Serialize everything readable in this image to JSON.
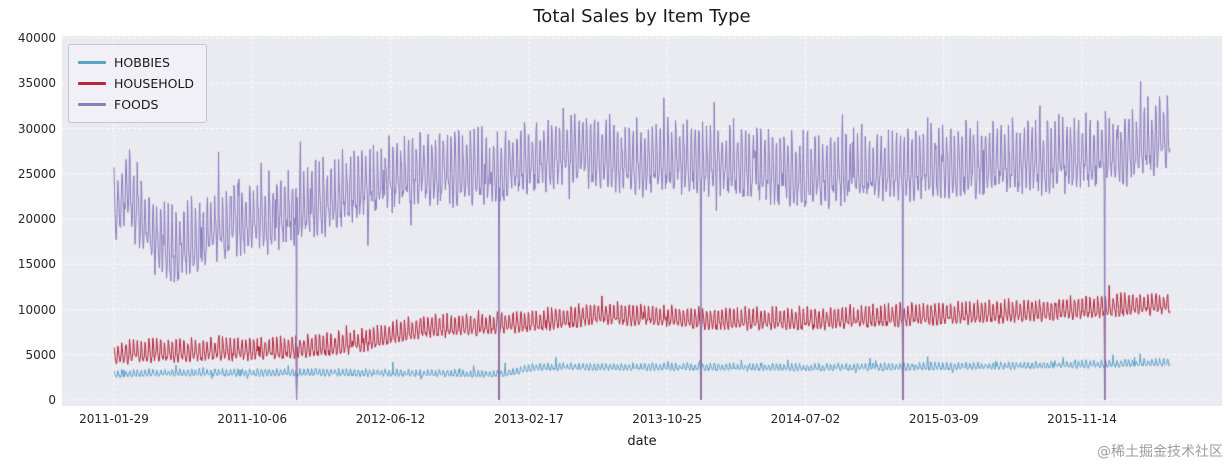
{
  "watermark": "@稀土掘金技术社区",
  "chart_data": {
    "type": "line",
    "title": "Total Sales by Item Type",
    "xlabel": "date",
    "ylabel": "",
    "x_start_date": "2011-01-29",
    "n_days": 1910,
    "ylim": [
      0,
      40000
    ],
    "y_ticks": [
      0,
      5000,
      10000,
      15000,
      20000,
      25000,
      30000,
      35000,
      40000
    ],
    "x_ticks": [
      {
        "day": 0,
        "label": "2011-01-29"
      },
      {
        "day": 250,
        "label": "2011-10-06"
      },
      {
        "day": 500,
        "label": "2012-06-12"
      },
      {
        "day": 750,
        "label": "2013-02-17"
      },
      {
        "day": 1000,
        "label": "2013-10-25"
      },
      {
        "day": 1250,
        "label": "2014-07-02"
      },
      {
        "day": 1500,
        "label": "2015-03-09"
      },
      {
        "day": 1750,
        "label": "2015-11-14"
      }
    ],
    "grid": true,
    "grid_style": "dashed-white",
    "plot_background": "#eaeaf1",
    "grid_color": "#ffffff",
    "legend_position": "upper-left",
    "zero_sales_days": [
      330,
      696,
      1061,
      1426,
      1791
    ],
    "weekly_pattern_sat_first": [
      1.0,
      0.75,
      0.0,
      -0.55,
      -0.7,
      -0.6,
      -0.15
    ],
    "series": [
      {
        "name": "HOBBIES",
        "color": "#5ba3c9",
        "approx_range": [
          2500,
          5600
        ],
        "trend": {
          "days": [
            0,
            60,
            180,
            330,
            480,
            600,
            700,
            735,
            760,
            900,
            1060,
            1250,
            1430,
            1600,
            1750,
            1850,
            1909
          ],
          "values": [
            2850,
            2950,
            3000,
            3020,
            2980,
            2900,
            2850,
            3250,
            3600,
            3650,
            3600,
            3580,
            3620,
            3750,
            3900,
            4050,
            4150
          ]
        },
        "weekly_amplitude": 380,
        "noise_amplitude": 170,
        "spike_probability": 0.02,
        "spike_scale": 900,
        "seed": 101
      },
      {
        "name": "HOUSEHOLD",
        "color": "#b5273c",
        "approx_range": [
          4500,
          12800
        ],
        "trend": {
          "days": [
            0,
            40,
            150,
            300,
            400,
            470,
            510,
            550,
            650,
            780,
            880,
            980,
            1080,
            1200,
            1330,
            1450,
            1580,
            1700,
            1820,
            1909
          ],
          "values": [
            4950,
            5250,
            5400,
            5600,
            6000,
            6600,
            7400,
            7900,
            8200,
            8700,
            9500,
            9200,
            8850,
            8800,
            9000,
            9300,
            9600,
            9900,
            10300,
            10600
          ]
        },
        "weekly_amplitude": 1150,
        "noise_amplitude": 420,
        "spike_probability": 0.02,
        "spike_scale": 1200,
        "seed": 202
      },
      {
        "name": "FOODS",
        "color": "#8b7dbe",
        "approx_range": [
          13000,
          38500
        ],
        "trend": {
          "days": [
            0,
            25,
            50,
            80,
            115,
            160,
            220,
            280,
            340,
            420,
            500,
            560,
            630,
            700,
            760,
            830,
            880,
            950,
            1020,
            1100,
            1180,
            1260,
            1340,
            1420,
            1500,
            1580,
            1660,
            1740,
            1820,
            1870,
            1909
          ],
          "values": [
            20800,
            23200,
            20300,
            17200,
            16600,
            18300,
            19300,
            20300,
            21200,
            22800,
            24600,
            25400,
            25100,
            25600,
            26400,
            27600,
            27000,
            26200,
            26700,
            26300,
            25400,
            24700,
            25100,
            25400,
            25800,
            26100,
            26400,
            26800,
            27400,
            28300,
            29200
          ]
        },
        "weekly_amplitude": 3600,
        "noise_amplitude": 1500,
        "spike_probability": 0.035,
        "spike_scale": 4200,
        "seed": 303
      }
    ]
  }
}
